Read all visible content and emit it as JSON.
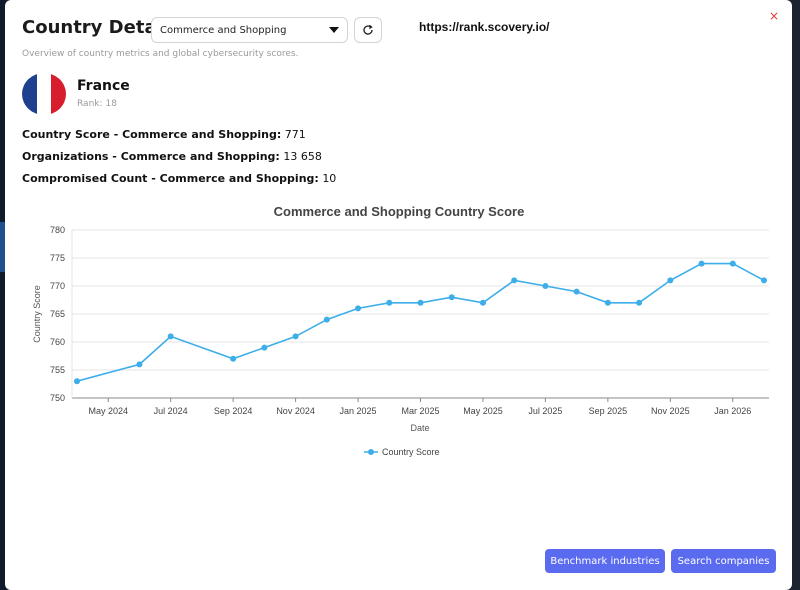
{
  "header": {
    "title": "Country Details",
    "industry_select": {
      "value": "Commerce and Shopping"
    },
    "url": "https://rank.scovery.io/",
    "close_label": "×",
    "subtitle": "Overview of country metrics and global cybersecurity scores."
  },
  "country": {
    "name": "France",
    "rank_label": "Rank:",
    "rank": "18",
    "flag_colors": [
      "#1f3f8f",
      "#ffffff",
      "#d81e2d"
    ]
  },
  "metrics": [
    {
      "label": "Country Score - Commerce and Shopping:",
      "value": "771"
    },
    {
      "label": "Organizations - Commerce and Shopping:",
      "value": "13 658"
    },
    {
      "label": "Compromised Count - Commerce and Shopping:",
      "value": "10"
    }
  ],
  "chart_data": {
    "type": "line",
    "title": "Commerce and Shopping Country Score",
    "xlabel": "Date",
    "ylabel": "Country Score",
    "ylim": [
      750,
      780
    ],
    "yticks": [
      750,
      755,
      760,
      765,
      770,
      775,
      780
    ],
    "xtick_labels": [
      "May 2024",
      "Jul 2024",
      "Sep 2024",
      "Nov 2024",
      "Jan 2025",
      "Mar 2025",
      "May 2025",
      "Jul 2025",
      "Sep 2025",
      "Nov 2025",
      "Jan 2026"
    ],
    "grid": true,
    "legend_position": "bottom",
    "color": "#3daee9",
    "series": [
      {
        "name": "Country Score",
        "x": [
          "2024-04",
          "2024-06",
          "2024-07",
          "2024-09",
          "2024-10",
          "2024-11",
          "2024-12",
          "2025-01",
          "2025-02",
          "2025-03",
          "2025-04",
          "2025-05",
          "2025-06",
          "2025-07",
          "2025-08",
          "2025-09",
          "2025-10",
          "2025-11",
          "2025-12",
          "2026-01",
          "2026-02"
        ],
        "values": [
          753,
          756,
          761,
          757,
          759,
          761,
          764,
          766,
          767,
          767,
          768,
          767,
          771,
          770,
          769,
          767,
          767,
          771,
          774,
          774,
          771
        ]
      }
    ]
  },
  "actions": {
    "benchmark_label": "Benchmark industries",
    "search_label": "Search companies"
  }
}
